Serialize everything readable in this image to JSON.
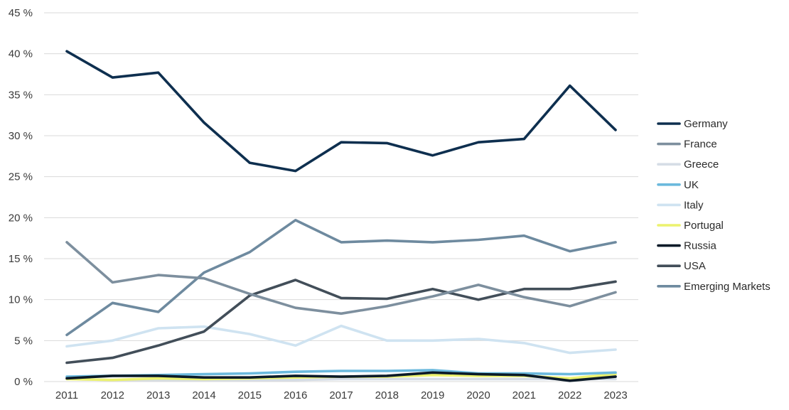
{
  "chart_data": {
    "type": "line",
    "title": "",
    "xlabel": "",
    "ylabel": "",
    "x": [
      "2011",
      "2012",
      "2013",
      "2014",
      "2015",
      "2016",
      "2017",
      "2018",
      "2019",
      "2020",
      "2021",
      "2022",
      "2023"
    ],
    "ylim": [
      0,
      45
    ],
    "yticks": [
      {
        "value": 0,
        "label": "0 %"
      },
      {
        "value": 5,
        "label": "5 %"
      },
      {
        "value": 10,
        "label": "10 %"
      },
      {
        "value": 15,
        "label": "15 %"
      },
      {
        "value": 20,
        "label": "20 %"
      },
      {
        "value": 25,
        "label": "25 %"
      },
      {
        "value": 30,
        "label": "30 %"
      },
      {
        "value": 35,
        "label": "35 %"
      },
      {
        "value": 40,
        "label": "40 %"
      },
      {
        "value": 45,
        "label": "45 %"
      }
    ],
    "grid": true,
    "legend_position": "right",
    "series": [
      {
        "name": "Greece",
        "color": "#d6dde6",
        "values": [
          0.3,
          0.2,
          0.2,
          0.2,
          0.2,
          0.2,
          0.3,
          0.3,
          0.3,
          0.3,
          0.3,
          0.3,
          0.3
        ]
      },
      {
        "name": "Portugal",
        "color": "#ecf26e",
        "values": [
          0.3,
          0.2,
          0.4,
          0.3,
          0.4,
          0.5,
          0.6,
          0.6,
          0.8,
          0.7,
          0.7,
          0.4,
          0.9
        ]
      },
      {
        "name": "UK",
        "color": "#6bb9dd",
        "values": [
          0.6,
          0.7,
          0.8,
          0.9,
          1.0,
          1.2,
          1.3,
          1.3,
          1.4,
          1.0,
          1.0,
          0.9,
          1.1
        ]
      },
      {
        "name": "Italy",
        "color": "#cfe3f1",
        "values": [
          4.3,
          5.0,
          6.5,
          6.7,
          5.8,
          4.4,
          6.8,
          5.0,
          5.0,
          5.2,
          4.7,
          3.5,
          3.9
        ]
      },
      {
        "name": "USA",
        "color": "#424e59",
        "values": [
          2.3,
          2.9,
          4.4,
          6.1,
          10.5,
          12.4,
          10.2,
          10.1,
          11.3,
          10.0,
          11.3,
          11.3,
          12.2
        ]
      },
      {
        "name": "Emerging Markets",
        "color": "#6e8a9f",
        "values": [
          5.7,
          9.6,
          8.5,
          13.3,
          15.8,
          19.7,
          17.0,
          17.2,
          17.0,
          17.3,
          17.8,
          15.9,
          17.0
        ]
      },
      {
        "name": "France",
        "color": "#7d8f9e",
        "values": [
          17.0,
          12.1,
          13.0,
          12.6,
          10.7,
          9.0,
          8.3,
          9.2,
          10.4,
          11.8,
          10.3,
          9.2,
          10.9
        ]
      },
      {
        "name": "Russia",
        "color": "#0a1a28",
        "values": [
          0.4,
          0.7,
          0.7,
          0.5,
          0.5,
          0.7,
          0.6,
          0.7,
          1.1,
          0.9,
          0.8,
          0.1,
          0.6
        ]
      },
      {
        "name": "Germany",
        "color": "#0e2f4f",
        "values": [
          40.3,
          37.1,
          37.7,
          31.6,
          26.7,
          25.7,
          29.2,
          29.1,
          27.6,
          29.2,
          29.6,
          36.1,
          30.7
        ]
      }
    ],
    "legend_order": [
      "Germany",
      "France",
      "Greece",
      "UK",
      "Italy",
      "Portugal",
      "Russia",
      "USA",
      "Emerging Markets"
    ]
  }
}
